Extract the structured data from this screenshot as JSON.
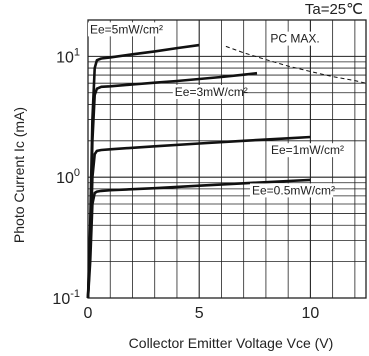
{
  "chart_data": {
    "type": "line",
    "title": "",
    "condition_label": "Ta=25℃",
    "xlabel": "Collector Emitter Voltage  Vce (V)",
    "ylabel": "Photo Current  Ic (mA)",
    "xlim": [
      0,
      12.5
    ],
    "ylim": [
      0.1,
      20
    ],
    "yscale": "log",
    "grid": true,
    "x_ticks": [
      {
        "value": 0,
        "label": "0"
      },
      {
        "value": 5,
        "label": "5"
      },
      {
        "value": 10,
        "label": "10"
      }
    ],
    "y_ticks": [
      {
        "value": 0.1,
        "base": "10",
        "exp": "-1"
      },
      {
        "value": 1,
        "base": "10",
        "exp": "0"
      },
      {
        "value": 10,
        "base": "10",
        "exp": "1"
      }
    ],
    "series": [
      {
        "name": "Ee=5mW/cm²",
        "x": [
          0,
          0.1,
          0.2,
          0.3,
          0.4,
          0.6,
          1.0,
          2.0,
          3.0,
          4.0,
          5.0
        ],
        "y": [
          0.1,
          0.4,
          3.0,
          8.0,
          9.3,
          9.6,
          9.8,
          10.4,
          11.0,
          11.7,
          12.4
        ]
      },
      {
        "name": "Ee=3mW/cm²",
        "x": [
          0,
          0.1,
          0.2,
          0.3,
          0.4,
          0.6,
          1.0,
          2.0,
          3.0,
          4.0,
          5.0,
          6.0,
          7.0,
          7.6
        ],
        "y": [
          0.1,
          0.3,
          2.0,
          4.8,
          5.4,
          5.6,
          5.65,
          5.85,
          6.05,
          6.25,
          6.5,
          6.75,
          7.05,
          7.25
        ]
      },
      {
        "name": "Ee=1mW/cm²",
        "x": [
          0,
          0.1,
          0.2,
          0.3,
          0.4,
          0.6,
          1.0,
          3.0,
          5.0,
          7.0,
          9.0,
          10.0
        ],
        "y": [
          0.1,
          0.25,
          1.0,
          1.55,
          1.65,
          1.68,
          1.7,
          1.8,
          1.9,
          2.0,
          2.1,
          2.15
        ]
      },
      {
        "name": "Ee=0.5mW/cm²",
        "x": [
          0,
          0.1,
          0.2,
          0.3,
          0.4,
          0.6,
          1.0,
          3.0,
          5.0,
          7.0,
          9.0,
          10.0
        ],
        "y": [
          0.1,
          0.2,
          0.6,
          0.74,
          0.76,
          0.77,
          0.78,
          0.81,
          0.85,
          0.89,
          0.93,
          0.95
        ]
      }
    ],
    "pc_max": {
      "name": "PC MAX.",
      "x": [
        6.2,
        7,
        8,
        9,
        10,
        11,
        12,
        12.5
      ],
      "y": [
        12.1,
        10.7,
        9.4,
        8.3,
        7.5,
        6.8,
        6.3,
        6.0
      ]
    },
    "annotations": [
      {
        "text": "Ee=5mW/cm²",
        "series": 0
      },
      {
        "text": "Ee=3mW/cm²",
        "series": 1
      },
      {
        "text": "Ee=1mW/cm²",
        "series": 2
      },
      {
        "text": "Ee=0.5mW/cm²",
        "series": 3
      },
      {
        "text": "PC MAX.",
        "series": "pc_max"
      }
    ]
  }
}
